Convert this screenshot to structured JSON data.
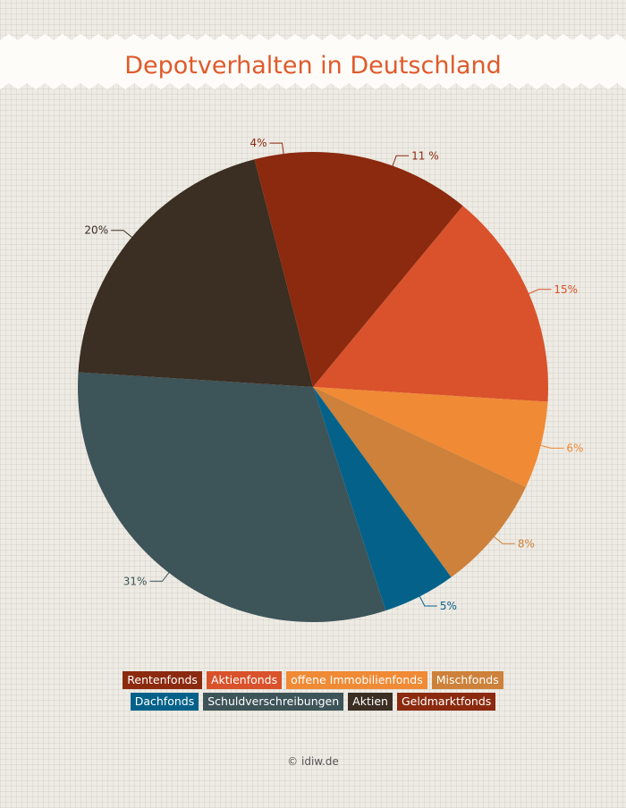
{
  "chart_data": {
    "type": "pie",
    "title": "Depotverhalten in Deutschland",
    "categories": [
      "Rentenfonds",
      "Aktienfonds",
      "offene Immobilienfonds",
      "Mischfonds",
      "Dachfonds",
      "Schuldverschreibungen",
      "Aktien",
      "Geldmarktfonds"
    ],
    "values": [
      11,
      15,
      6,
      8,
      5,
      31,
      20,
      4
    ],
    "value_labels": [
      "11 %",
      "15%",
      "6%",
      "8%",
      "5%",
      "31%",
      "20%",
      "4%"
    ],
    "colors": [
      "#8b2a0f",
      "#d9522b",
      "#f08a35",
      "#cd813a",
      "#04628a",
      "#3d5459",
      "#3b2e22",
      "#8b2a0f"
    ],
    "footer": "© idiw.de"
  }
}
